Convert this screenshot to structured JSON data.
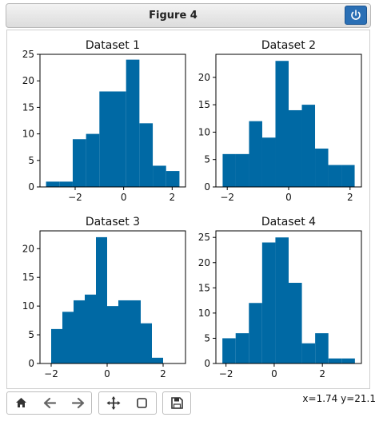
{
  "window": {
    "title": "Figure 4"
  },
  "status": {
    "coordinates": "x=1.74 y=21.1"
  },
  "colors": {
    "bar": "#0069a4",
    "power_button": "#2a6fb5"
  },
  "toolbar": {
    "buttons": [
      {
        "name": "home-icon"
      },
      {
        "name": "back-arrow-icon"
      },
      {
        "name": "forward-arrow-icon"
      },
      {
        "name": "pan-move-icon"
      },
      {
        "name": "zoom-rect-icon"
      },
      {
        "name": "save-icon"
      }
    ]
  },
  "chart_data": [
    {
      "type": "bar",
      "title": "Dataset 1",
      "bin_edges": [
        -3.2,
        -2.65,
        -2.1,
        -1.55,
        -1.0,
        -0.45,
        0.1,
        0.65,
        1.2,
        1.75,
        2.3
      ],
      "values": [
        1,
        1,
        9,
        10,
        18,
        18,
        24,
        12,
        4,
        3
      ],
      "xlim": [
        -3.45,
        2.55
      ],
      "ylim": [
        0,
        25
      ],
      "xticks": [
        -2,
        0,
        2
      ],
      "xtick_labels": [
        "−2",
        "0",
        "2"
      ],
      "yticks": [
        0,
        5,
        10,
        15,
        20,
        25
      ],
      "ytick_labels": [
        "0",
        "5",
        "10",
        "15",
        "20",
        "25"
      ]
    },
    {
      "type": "bar",
      "title": "Dataset 2",
      "bin_edges": [
        -2.15,
        -1.72,
        -1.29,
        -0.86,
        -0.43,
        0.0,
        0.43,
        0.86,
        1.29,
        1.72,
        2.15
      ],
      "values": [
        6,
        6,
        12,
        9,
        23,
        14,
        15,
        7,
        4,
        4
      ],
      "xlim": [
        -2.37,
        2.37
      ],
      "ylim": [
        0,
        24.2
      ],
      "xticks": [
        -2,
        0,
        2
      ],
      "xtick_labels": [
        "−2",
        "0",
        "2"
      ],
      "yticks": [
        0,
        5,
        10,
        15,
        20
      ],
      "ytick_labels": [
        "0",
        "5",
        "10",
        "15",
        "20"
      ]
    },
    {
      "type": "bar",
      "title": "Dataset 3",
      "bin_edges": [
        -2.0,
        -1.6,
        -1.2,
        -0.8,
        -0.4,
        0.0,
        0.4,
        0.8,
        1.2,
        1.6,
        2.0
      ],
      "values": [
        6,
        9,
        11,
        12,
        22,
        10,
        11,
        11,
        7,
        1
      ],
      "xlim": [
        -2.4,
        2.8
      ],
      "ylim": [
        0,
        23.1
      ],
      "xticks": [
        -2,
        0,
        2
      ],
      "xtick_labels": [
        "−2",
        "0",
        "2"
      ],
      "yticks": [
        0,
        5,
        10,
        15,
        20
      ],
      "ytick_labels": [
        "0",
        "5",
        "10",
        "15",
        "20"
      ]
    },
    {
      "type": "bar",
      "title": "Dataset 4",
      "bin_edges": [
        -2.15,
        -1.6,
        -1.05,
        -0.5,
        0.05,
        0.6,
        1.15,
        1.7,
        2.25,
        2.8,
        3.35
      ],
      "values": [
        5,
        6,
        12,
        24,
        25,
        16,
        4,
        6,
        1,
        1
      ],
      "xlim": [
        -2.42,
        3.62
      ],
      "ylim": [
        0,
        26.3
      ],
      "xticks": [
        -2,
        0,
        2
      ],
      "xtick_labels": [
        "−2",
        "0",
        "2"
      ],
      "yticks": [
        0,
        5,
        10,
        15,
        20,
        25
      ],
      "ytick_labels": [
        "0",
        "5",
        "10",
        "15",
        "20",
        "25"
      ]
    }
  ]
}
